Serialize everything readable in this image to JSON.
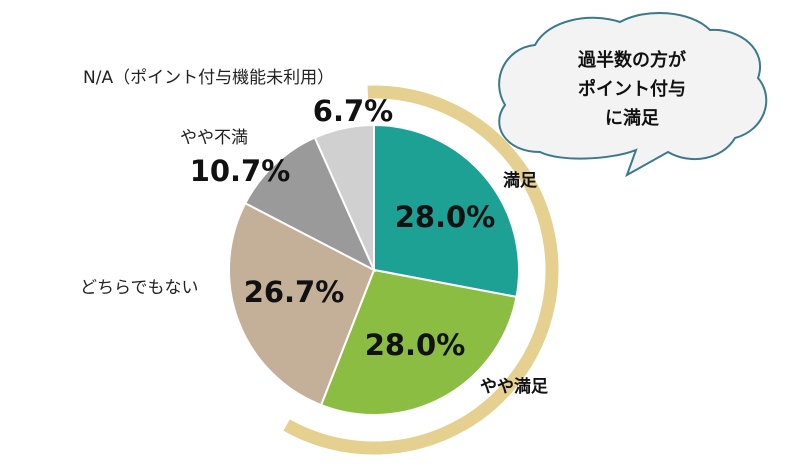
{
  "chart_data": {
    "type": "pie",
    "title": "",
    "slices": [
      {
        "label": "満足",
        "value": 28.0,
        "display": "28.0%",
        "color": "#1ea195"
      },
      {
        "label": "やや満足",
        "value": 28.0,
        "display": "28.0%",
        "color": "#8bbd43"
      },
      {
        "label": "どちらでもない",
        "value": 26.7,
        "display": "26.7%",
        "color": "#c4af98"
      },
      {
        "label": "やや不満",
        "value": 10.7,
        "display": "10.7%",
        "color": "#9a9a9a"
      },
      {
        "label": "N/A（ポイント付与機能未利用）",
        "value": 6.7,
        "display": "6.7%",
        "color": "#d0d0d0"
      }
    ],
    "start_angle_deg": 0,
    "direction": "clockwise",
    "highlight_arc": {
      "covers": [
        "満足",
        "やや満足"
      ],
      "color": "#e6d08f"
    },
    "callout": {
      "lines": [
        "過半数の方が",
        "ポイント付与",
        "に満足"
      ],
      "bubble_color": "#f3f3f3",
      "border_color": "#3a7a8c"
    }
  }
}
